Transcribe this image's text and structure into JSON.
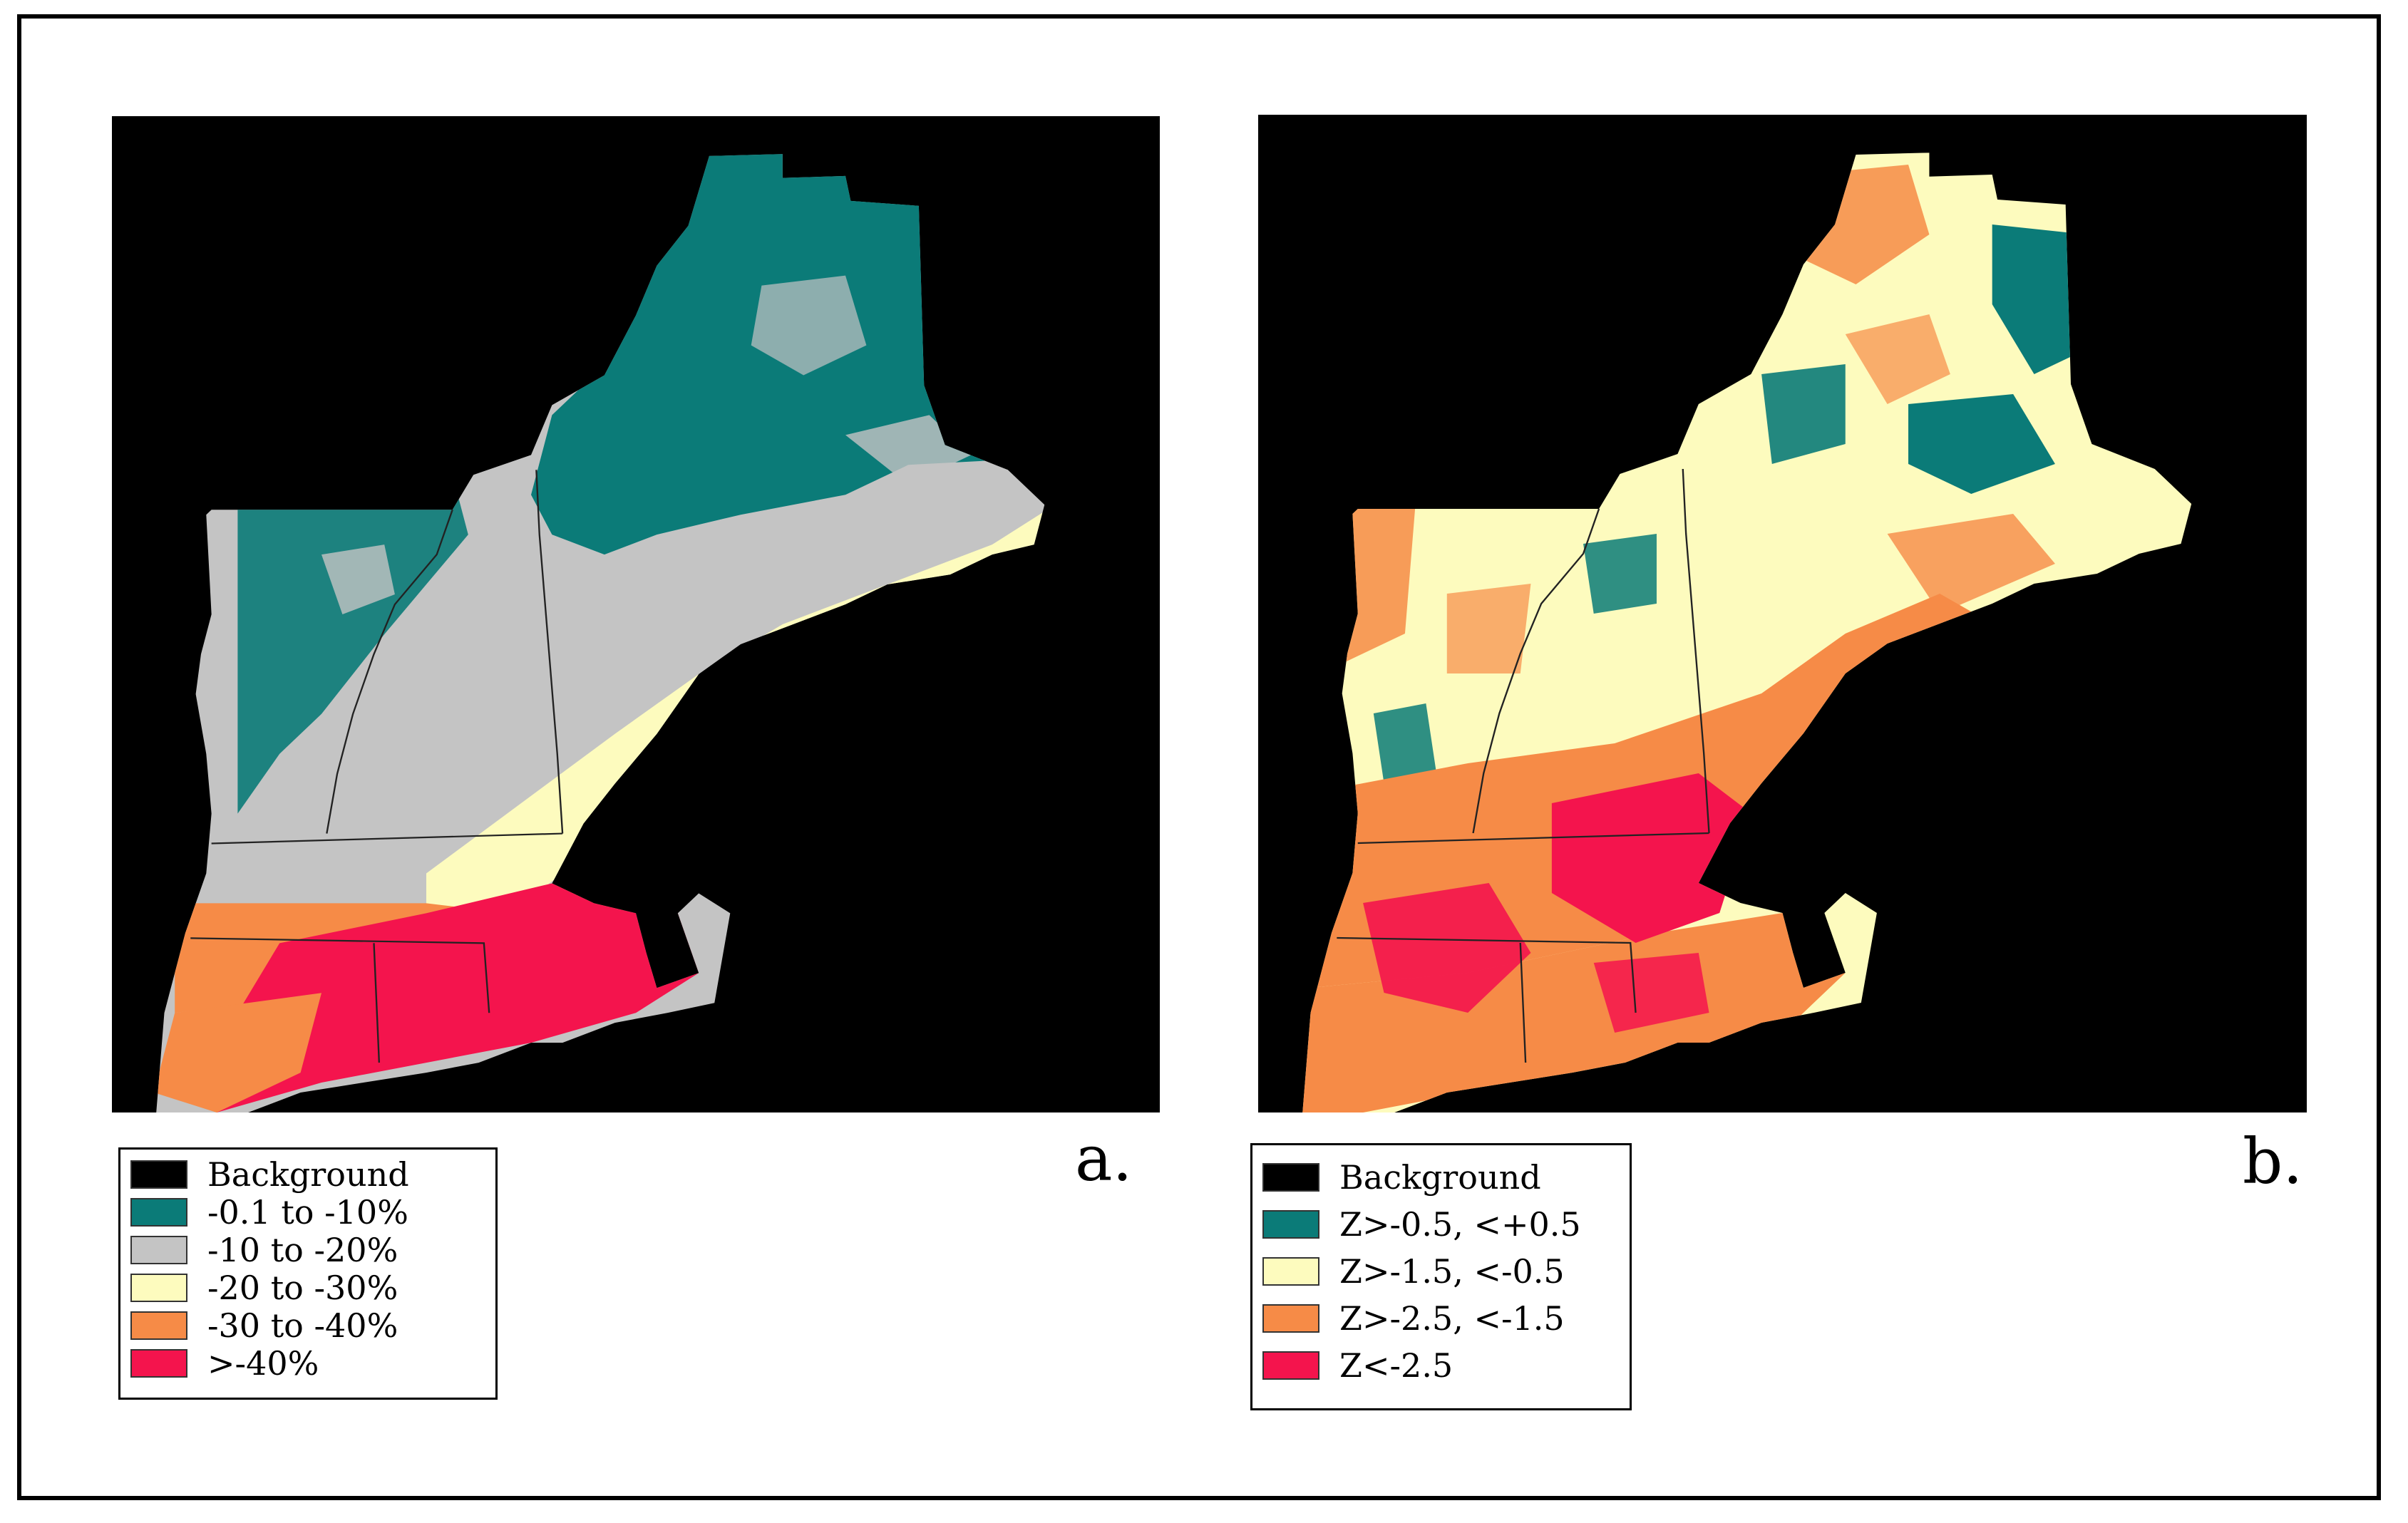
{
  "panels": [
    {
      "id": "a",
      "label": "a.",
      "legend": [
        {
          "label": "Background",
          "color": "#000000"
        },
        {
          "label": "-0.1 to -10%",
          "color": "#0b7b78"
        },
        {
          "label": "-10 to -20%",
          "color": "#c4c4c4"
        },
        {
          "label": "-20 to -30%",
          "color": "#fdfbbe"
        },
        {
          "label": "-30 to -40%",
          "color": "#f68b47"
        },
        {
          "label": ">-40%",
          "color": "#f4144d"
        }
      ]
    },
    {
      "id": "b",
      "label": "b.",
      "legend": [
        {
          "label": "Background",
          "color": "#000000"
        },
        {
          "label": "Z>-0.5, <+0.5",
          "color": "#0b7b78"
        },
        {
          "label": "Z>-1.5, <-0.5",
          "color": "#fdfbbe"
        },
        {
          "label": "Z>-2.5, <-1.5",
          "color": "#f68b47"
        },
        {
          "label": "Z<-2.5",
          "color": "#f4144d"
        }
      ]
    }
  ]
}
